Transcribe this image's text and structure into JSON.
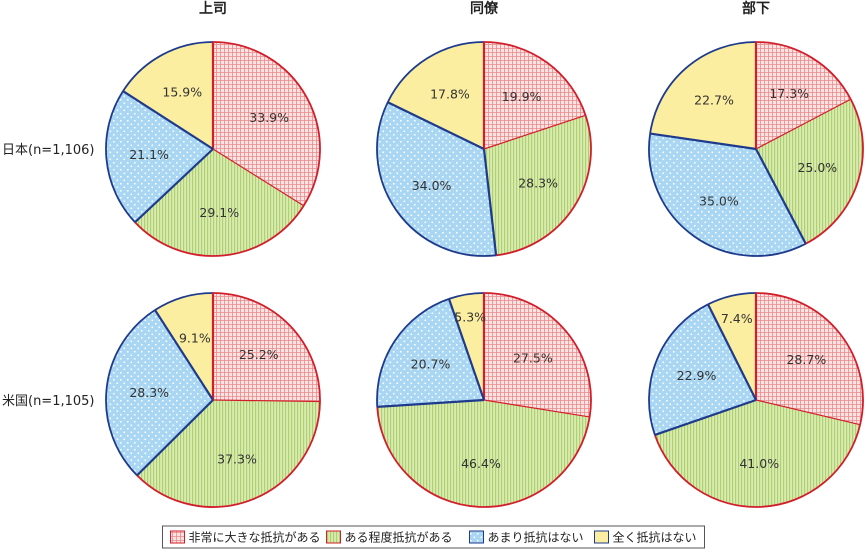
{
  "chart_data": {
    "type": "pie",
    "columns": [
      "上司",
      "同僚",
      "部下"
    ],
    "rows": [
      "日本(n=1,106)",
      "米国(n=1,105)"
    ],
    "legend": [
      "非常に大きな抵抗がある",
      "ある程度抵抗がある",
      "あまり抵抗はない",
      "全く抵抗はない"
    ],
    "legend_placement": "bottom-center",
    "labels": [
      [
        [
          "33.9%",
          "29.1%",
          "21.1%",
          "15.9%"
        ],
        [
          "19.9%",
          "28.3%",
          "34.0%",
          "17.8%"
        ],
        [
          "17.3%",
          "25.0%",
          "35.0%",
          "22.7%"
        ]
      ],
      [
        [
          "25.2%",
          "37.3%",
          "28.3%",
          "9.1%"
        ],
        [
          "27.5%",
          "46.4%",
          "20.7%",
          "5.3%"
        ],
        [
          "28.7%",
          "41.0%",
          "22.9%",
          "7.4%"
        ]
      ]
    ],
    "values": [
      [
        [
          33.9,
          29.1,
          21.1,
          15.9
        ],
        [
          19.9,
          28.3,
          34.0,
          17.8
        ],
        [
          17.3,
          25.0,
          35.0,
          22.7
        ]
      ],
      [
        [
          25.2,
          37.3,
          28.3,
          9.1
        ],
        [
          27.5,
          46.4,
          20.7,
          5.3
        ],
        [
          28.7,
          41.0,
          22.9,
          7.4
        ]
      ]
    ],
    "colors": {
      "very_large": "#f4b4b4",
      "some": "#c6de8f",
      "not_much": "#a9d6f2",
      "none": "#fbeea0",
      "border_red": "#d21e2b",
      "border_blue": "#1e3a8c"
    }
  }
}
